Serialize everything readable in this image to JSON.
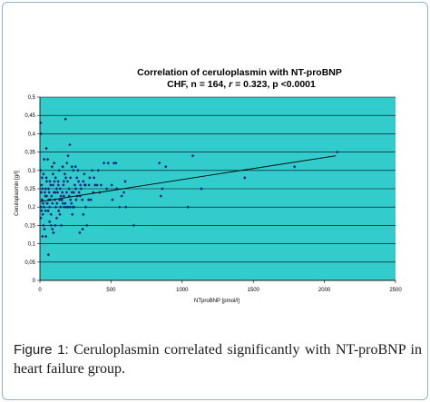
{
  "chart_data": {
    "type": "scatter",
    "title": "Correlation of ceruloplasmin with NT-proBNP",
    "subtitle_prefix": "CHF, n = 164, ",
    "subtitle_r_symbol": "r",
    "subtitle_suffix": " = 0.323, p <0.0001",
    "xlabel": "NTproBNP [pmol/l]",
    "ylabel": "Ceruloplasmin [g/l]",
    "xlim": [
      0,
      2500
    ],
    "ylim": [
      0,
      0.5
    ],
    "x_ticks": [
      "0",
      "500",
      "1000",
      "1500",
      "2000",
      "2500"
    ],
    "y_ticks": [
      "0",
      "0,05",
      "0,1",
      "0,15",
      "0,2",
      "0,25",
      "0,3",
      "0,35",
      "0,4",
      "0,45",
      "0,5"
    ],
    "grid": "horizontal",
    "legend": "none",
    "colors": {
      "plot_bg": "#33cccc",
      "point": "#1a237e",
      "grid": "#000000",
      "frame": "#8fb3c9"
    },
    "trendline": {
      "x": [
        0,
        2080
      ],
      "y": [
        0.215,
        0.34
      ]
    },
    "points": [
      [
        5,
        0.43
      ],
      [
        8,
        0.4
      ],
      [
        5,
        0.3
      ],
      [
        12,
        0.26
      ],
      [
        18,
        0.25
      ],
      [
        10,
        0.24
      ],
      [
        15,
        0.22
      ],
      [
        22,
        0.21
      ],
      [
        8,
        0.2
      ],
      [
        28,
        0.2
      ],
      [
        12,
        0.19
      ],
      [
        20,
        0.18
      ],
      [
        6,
        0.17
      ],
      [
        25,
        0.15
      ],
      [
        32,
        0.14
      ],
      [
        18,
        0.12
      ],
      [
        42,
        0.12
      ],
      [
        15,
        0.22
      ],
      [
        38,
        0.23
      ],
      [
        40,
        0.25
      ],
      [
        48,
        0.27
      ],
      [
        45,
        0.28
      ],
      [
        55,
        0.33
      ],
      [
        52,
        0.21
      ],
      [
        62,
        0.22
      ],
      [
        68,
        0.2
      ],
      [
        58,
        0.19
      ],
      [
        78,
        0.18
      ],
      [
        72,
        0.22
      ],
      [
        88,
        0.21
      ],
      [
        82,
        0.23
      ],
      [
        98,
        0.24
      ],
      [
        92,
        0.26
      ],
      [
        105,
        0.22
      ],
      [
        112,
        0.2
      ],
      [
        120,
        0.21
      ],
      [
        118,
        0.25
      ],
      [
        132,
        0.19
      ],
      [
        140,
        0.18
      ],
      [
        148,
        0.23
      ],
      [
        155,
        0.22
      ],
      [
        162,
        0.21
      ],
      [
        170,
        0.2
      ],
      [
        68,
        0.16
      ],
      [
        78,
        0.15
      ],
      [
        88,
        0.14
      ],
      [
        95,
        0.13
      ],
      [
        60,
        0.07
      ],
      [
        108,
        0.15
      ],
      [
        118,
        0.17
      ],
      [
        145,
        0.2
      ],
      [
        150,
        0.15
      ],
      [
        158,
        0.24
      ],
      [
        168,
        0.27
      ],
      [
        175,
        0.29
      ],
      [
        182,
        0.28
      ],
      [
        190,
        0.32
      ],
      [
        198,
        0.34
      ],
      [
        210,
        0.37
      ],
      [
        225,
        0.31
      ],
      [
        180,
        0.44
      ],
      [
        135,
        0.3
      ],
      [
        128,
        0.27
      ],
      [
        205,
        0.25
      ],
      [
        215,
        0.22
      ],
      [
        222,
        0.21
      ],
      [
        230,
        0.2
      ],
      [
        238,
        0.24
      ],
      [
        245,
        0.26
      ],
      [
        252,
        0.25
      ],
      [
        260,
        0.28
      ],
      [
        268,
        0.3
      ],
      [
        275,
        0.24
      ],
      [
        282,
        0.23
      ],
      [
        290,
        0.25
      ],
      [
        298,
        0.22
      ],
      [
        305,
        0.27
      ],
      [
        312,
        0.29
      ],
      [
        320,
        0.26
      ],
      [
        280,
        0.13
      ],
      [
        300,
        0.14
      ],
      [
        330,
        0.15
      ],
      [
        305,
        0.18
      ],
      [
        322,
        0.2
      ],
      [
        342,
        0.22
      ],
      [
        358,
        0.22
      ],
      [
        375,
        0.24
      ],
      [
        388,
        0.26
      ],
      [
        402,
        0.26
      ],
      [
        420,
        0.24
      ],
      [
        205,
        0.23
      ],
      [
        225,
        0.24
      ],
      [
        195,
        0.27
      ],
      [
        215,
        0.28
      ],
      [
        235,
        0.3
      ],
      [
        165,
        0.26
      ],
      [
        188,
        0.24
      ],
      [
        142,
        0.25
      ],
      [
        102,
        0.27
      ],
      [
        100,
        0.32
      ],
      [
        85,
        0.31
      ],
      [
        30,
        0.33
      ],
      [
        45,
        0.36
      ],
      [
        15,
        0.28
      ],
      [
        25,
        0.29
      ],
      [
        35,
        0.24
      ],
      [
        48,
        0.23
      ],
      [
        65,
        0.24
      ],
      [
        75,
        0.26
      ],
      [
        92,
        0.29
      ],
      [
        110,
        0.28
      ],
      [
        125,
        0.24
      ],
      [
        138,
        0.22
      ],
      [
        152,
        0.22
      ],
      [
        168,
        0.23
      ],
      [
        178,
        0.21
      ],
      [
        185,
        0.2
      ],
      [
        198,
        0.2
      ],
      [
        212,
        0.2
      ],
      [
        228,
        0.18
      ],
      [
        240,
        0.2
      ],
      [
        255,
        0.22
      ],
      [
        262,
        0.23
      ],
      [
        272,
        0.27
      ],
      [
        285,
        0.26
      ],
      [
        315,
        0.26
      ],
      [
        350,
        0.28
      ],
      [
        368,
        0.3
      ],
      [
        410,
        0.3
      ],
      [
        450,
        0.32
      ],
      [
        470,
        0.25
      ],
      [
        480,
        0.32
      ],
      [
        505,
        0.26
      ],
      [
        510,
        0.22
      ],
      [
        520,
        0.32
      ],
      [
        535,
        0.32
      ],
      [
        540,
        0.25
      ],
      [
        560,
        0.2
      ],
      [
        575,
        0.23
      ],
      [
        590,
        0.24
      ],
      [
        600,
        0.27
      ],
      [
        605,
        0.2
      ],
      [
        660,
        0.15
      ],
      [
        840,
        0.32
      ],
      [
        850,
        0.23
      ],
      [
        860,
        0.25
      ],
      [
        885,
        0.31
      ],
      [
        1040,
        0.2
      ],
      [
        1075,
        0.34
      ],
      [
        1135,
        0.25
      ],
      [
        1440,
        0.28
      ],
      [
        1790,
        0.31
      ],
      [
        2090,
        0.35
      ],
      [
        60,
        0.25
      ],
      [
        70,
        0.27
      ],
      [
        40,
        0.19
      ],
      [
        50,
        0.21
      ],
      [
        110,
        0.24
      ],
      [
        130,
        0.26
      ],
      [
        160,
        0.31
      ],
      [
        250,
        0.31
      ],
      [
        345,
        0.26
      ],
      [
        380,
        0.28
      ],
      [
        430,
        0.26
      ]
    ]
  },
  "caption": {
    "label": "Figure 1:",
    "text": " Ceruloplasmin correlated significantly with NT-proBNP in heart failure group."
  }
}
